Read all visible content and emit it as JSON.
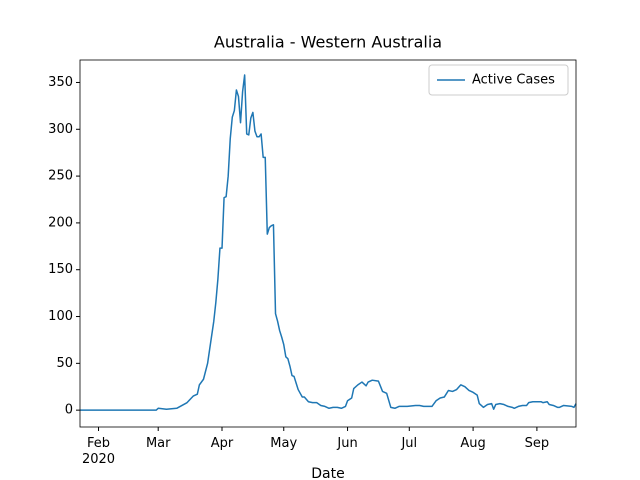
{
  "chart_data": {
    "type": "line",
    "title": "Australia - Western Australia",
    "x_label": "Date",
    "x": [
      23,
      60,
      61,
      65,
      70,
      75,
      78,
      80,
      81,
      83,
      85,
      86,
      88,
      89,
      90,
      91,
      92,
      93,
      94,
      95,
      96,
      97,
      98,
      99,
      100,
      101,
      102,
      103,
      104,
      105,
      106,
      107,
      108,
      109,
      110,
      111,
      112,
      113,
      114,
      115,
      116,
      117,
      118,
      119,
      120,
      121,
      122,
      123,
      124,
      125,
      126,
      127,
      128,
      129,
      130,
      131,
      132,
      134,
      136,
      138,
      140,
      142,
      144,
      146,
      148,
      150,
      152,
      153,
      155,
      156,
      158,
      160,
      162,
      163,
      165,
      168,
      170,
      172,
      174,
      176,
      178,
      182,
      186,
      188,
      190,
      194,
      196,
      198,
      200,
      202,
      204,
      206,
      208,
      210,
      212,
      214,
      216,
      217,
      219,
      221,
      223,
      224,
      225,
      227,
      229,
      231,
      233,
      234,
      236,
      238,
      240,
      241,
      243,
      247,
      248,
      250,
      251,
      253,
      255,
      256,
      258,
      262,
      263,
      264
    ],
    "series": [
      {
        "name": "Active Cases",
        "color": "#1f77b4",
        "values": [
          0,
          0,
          2,
          1,
          2,
          8,
          15,
          17,
          27,
          33,
          50,
          65,
          95,
          115,
          140,
          173,
          173,
          227,
          228,
          250,
          290,
          313,
          320,
          342,
          335,
          307,
          340,
          358,
          295,
          294,
          312,
          318,
          298,
          292,
          292,
          295,
          270,
          270,
          188,
          195,
          197,
          198,
          103,
          95,
          85,
          78,
          70,
          57,
          55,
          47,
          37,
          36,
          29,
          22,
          18,
          14,
          14,
          9,
          8,
          8,
          5,
          4,
          2,
          3,
          3,
          2,
          4,
          10,
          13,
          23,
          27,
          30,
          26,
          30,
          32,
          31,
          20,
          18,
          3,
          2,
          4,
          4,
          5,
          5,
          4,
          4,
          10,
          13,
          14,
          21,
          20,
          22,
          27,
          25,
          21,
          19,
          16,
          7,
          3,
          6,
          7,
          1,
          6,
          7,
          6,
          4,
          3,
          2,
          4,
          5,
          5,
          8,
          9,
          9,
          8,
          9,
          6,
          5,
          3,
          3,
          5,
          4,
          3,
          7
        ]
      }
    ],
    "xlim": [
      23,
      264
    ],
    "xticks": [
      {
        "value": 32,
        "label": "Feb\n2020"
      },
      {
        "value": 61,
        "label": "Mar"
      },
      {
        "value": 92,
        "label": "Apr"
      },
      {
        "value": 122,
        "label": "May"
      },
      {
        "value": 153,
        "label": "Jun"
      },
      {
        "value": 183,
        "label": "Jul"
      },
      {
        "value": 214,
        "label": "Aug"
      },
      {
        "value": 245,
        "label": "Sep"
      }
    ],
    "ylim": [
      -18,
      374
    ],
    "yticks": [
      0,
      50,
      100,
      150,
      200,
      250,
      300,
      350
    ],
    "legend": "upper right"
  }
}
